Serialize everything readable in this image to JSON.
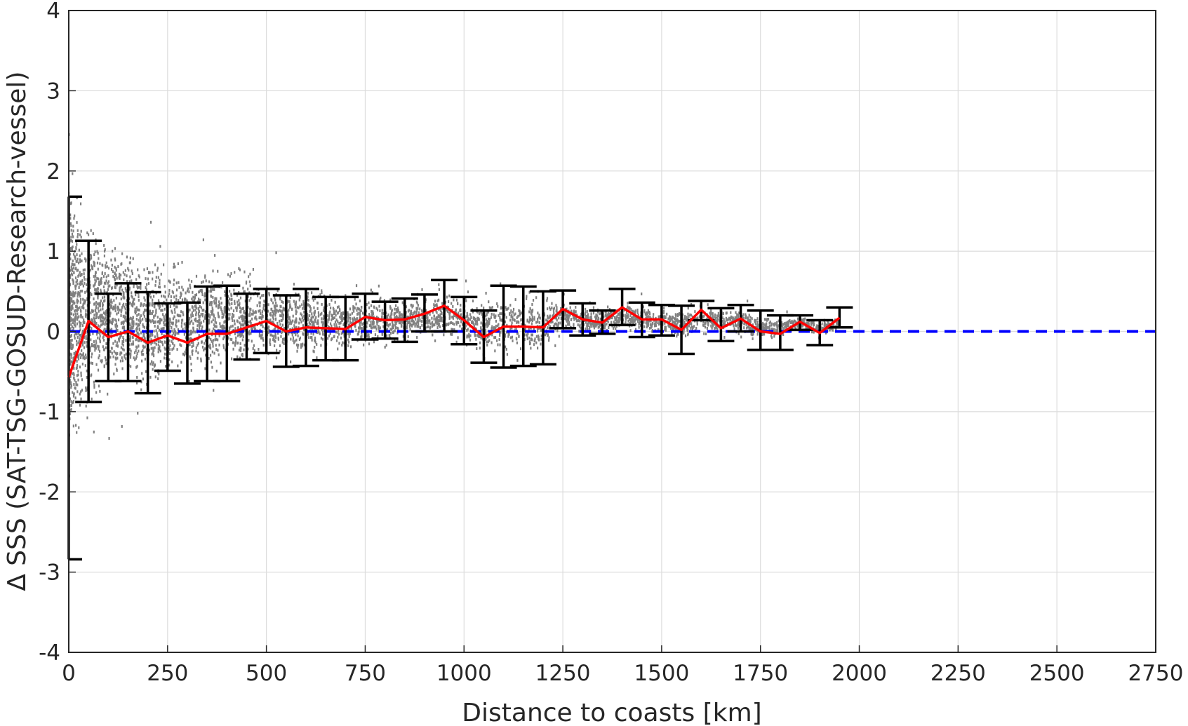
{
  "chart_data": {
    "type": "scatter",
    "xlabel": "Distance to coasts [km]",
    "ylabel": "∆ SSS (SAT-TSG-GOSUD-Research-vessel)",
    "xlim": [
      0,
      2750
    ],
    "ylim": [
      -4,
      4
    ],
    "xticks": [
      0,
      250,
      500,
      750,
      1000,
      1250,
      1500,
      1750,
      2000,
      2250,
      2500,
      2750
    ],
    "yticks": [
      -4,
      -3,
      -2,
      -1,
      0,
      1,
      2,
      3,
      4
    ],
    "xtick_labels": [
      "0",
      "250",
      "500",
      "750",
      "1000",
      "1250",
      "1500",
      "1750",
      "2000",
      "2250",
      "2500",
      "2750"
    ],
    "ytick_labels": [
      "-4",
      "-3",
      "-2",
      "-1",
      "0",
      "1",
      "2",
      "3",
      "4"
    ],
    "grid": true,
    "colors": {
      "scatter": "#808080",
      "mean_line": "#ff0000",
      "zero_line": "#0000ff",
      "errorbar": "#000000",
      "grid": "#dcdcdc",
      "axes": "#262626"
    },
    "reference_line": {
      "y": 0,
      "style": "dashed",
      "x_range": [
        0,
        2750
      ]
    },
    "binned_stats": {
      "x": [
        0,
        50,
        100,
        150,
        200,
        250,
        300,
        350,
        400,
        450,
        500,
        550,
        600,
        650,
        700,
        750,
        800,
        850,
        900,
        950,
        1000,
        1050,
        1100,
        1150,
        1200,
        1250,
        1300,
        1350,
        1400,
        1450,
        1500,
        1550,
        1600,
        1650,
        1700,
        1750,
        1800,
        1850,
        1900,
        1950
      ],
      "mean": [
        -0.57,
        0.13,
        -0.07,
        0.0,
        -0.14,
        -0.05,
        -0.14,
        -0.03,
        -0.03,
        0.05,
        0.13,
        0.0,
        0.05,
        0.04,
        0.03,
        0.18,
        0.14,
        0.15,
        0.22,
        0.32,
        0.14,
        -0.07,
        0.06,
        0.06,
        0.05,
        0.28,
        0.15,
        0.11,
        0.3,
        0.15,
        0.15,
        0.02,
        0.27,
        0.04,
        0.16,
        0.0,
        -0.03,
        0.12,
        -0.02,
        0.17
      ],
      "lower": [
        -2.84,
        -0.88,
        -0.62,
        -0.62,
        -0.77,
        -0.49,
        -0.65,
        -0.62,
        -0.62,
        -0.35,
        -0.27,
        -0.44,
        -0.43,
        -0.36,
        -0.36,
        -0.1,
        -0.09,
        -0.13,
        0.0,
        0.0,
        -0.16,
        -0.39,
        -0.45,
        -0.43,
        -0.41,
        0.04,
        -0.05,
        -0.03,
        0.08,
        -0.07,
        -0.05,
        -0.28,
        0.14,
        -0.12,
        0.0,
        -0.23,
        -0.23,
        0.02,
        -0.17,
        0.05
      ],
      "upper": [
        1.68,
        1.13,
        0.47,
        0.6,
        0.49,
        0.35,
        0.36,
        0.56,
        0.57,
        0.47,
        0.53,
        0.45,
        0.53,
        0.43,
        0.43,
        0.47,
        0.37,
        0.41,
        0.46,
        0.64,
        0.43,
        0.26,
        0.57,
        0.56,
        0.5,
        0.51,
        0.35,
        0.26,
        0.53,
        0.36,
        0.33,
        0.32,
        0.38,
        0.29,
        0.33,
        0.26,
        0.2,
        0.2,
        0.14,
        0.3
      ]
    },
    "scatter_envelope": {
      "x": [
        0,
        25,
        50,
        100,
        150,
        200,
        250,
        300,
        350,
        400,
        450,
        500,
        550,
        600,
        650,
        700,
        750,
        800,
        850,
        900,
        950,
        1000,
        1050,
        1100,
        1150,
        1200,
        1250,
        1300,
        1350,
        1400,
        1450,
        1500,
        1550,
        1600,
        1650,
        1700,
        1750,
        1800,
        1850,
        1900,
        1950
      ],
      "low_core": [
        -1.8,
        -1.5,
        -1.2,
        -0.9,
        -0.9,
        -0.8,
        -0.7,
        -0.6,
        -0.6,
        -0.5,
        -0.5,
        -0.4,
        -0.4,
        -0.35,
        -0.3,
        -0.3,
        -0.2,
        -0.2,
        -0.15,
        -0.1,
        -0.1,
        -0.2,
        -0.35,
        -0.35,
        -0.35,
        -0.3,
        0.0,
        -0.05,
        -0.05,
        0.0,
        -0.05,
        -0.05,
        -0.15,
        0.0,
        -0.05,
        -0.05,
        -0.15,
        -0.1,
        0.0,
        -0.1,
        0.0
      ],
      "high_core": [
        2.0,
        1.8,
        1.6,
        1.3,
        1.2,
        1.0,
        0.9,
        0.9,
        0.9,
        0.85,
        0.8,
        0.75,
        0.7,
        0.6,
        0.55,
        0.5,
        0.45,
        0.45,
        0.45,
        0.45,
        0.5,
        0.5,
        0.45,
        0.5,
        0.5,
        0.45,
        0.45,
        0.35,
        0.3,
        0.4,
        0.35,
        0.3,
        0.3,
        0.35,
        0.3,
        0.3,
        0.25,
        0.2,
        0.2,
        0.15,
        0.2
      ]
    }
  }
}
